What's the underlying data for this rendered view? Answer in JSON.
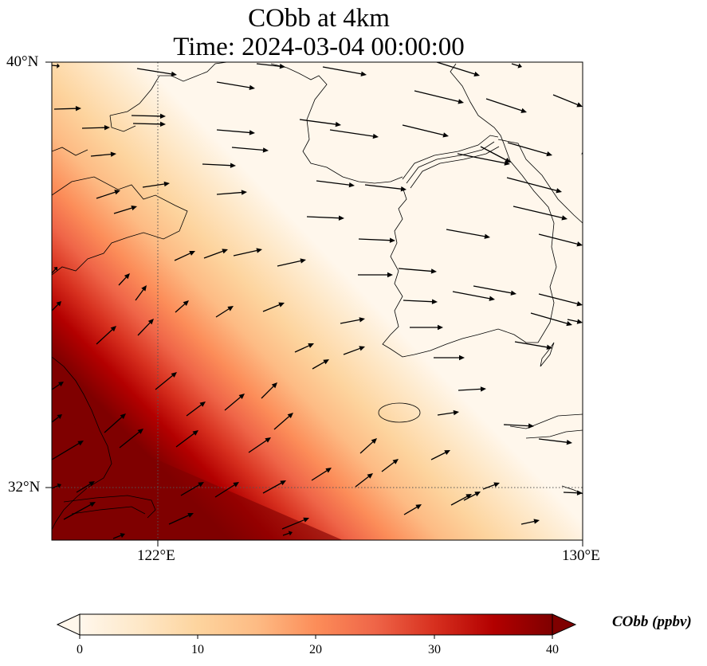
{
  "title": {
    "line1": "CObb at 4km",
    "line2": "Time: 2024-03-04 00:00:00"
  },
  "map": {
    "projection": "PlateCarree",
    "lon_range": [
      120.0,
      130.0
    ],
    "lat_range": [
      31.0,
      40.0
    ],
    "variable": "CObb",
    "level": "4km",
    "gridlines": "dotted at 122°E and 32°N",
    "lat_labels": [
      "40°N",
      "32°N"
    ],
    "lon_labels": [
      "122°E",
      "130°E"
    ],
    "features": [
      "coastline",
      "borders"
    ],
    "field_pattern": "high CObb (>30 ppbv) in south-west corner (Yangtze delta / East China), decaying north-eastward to ~0 over Yellow Sea, Korea and East Sea",
    "wind_vectors": "westerly to south-westerly flow, stronger in the north-east"
  },
  "colorbar": {
    "label": "CObb (ppbv)",
    "ticks": [
      "0",
      "10",
      "20",
      "30",
      "40"
    ],
    "range": [
      0,
      40
    ],
    "cmap": "OrRd",
    "extend": "both",
    "colors": [
      "#fff7ec",
      "#fee8c8",
      "#fdd49e",
      "#fdbb84",
      "#fc8d59",
      "#ef6548",
      "#d7301f",
      "#b30000",
      "#7f0000"
    ]
  }
}
